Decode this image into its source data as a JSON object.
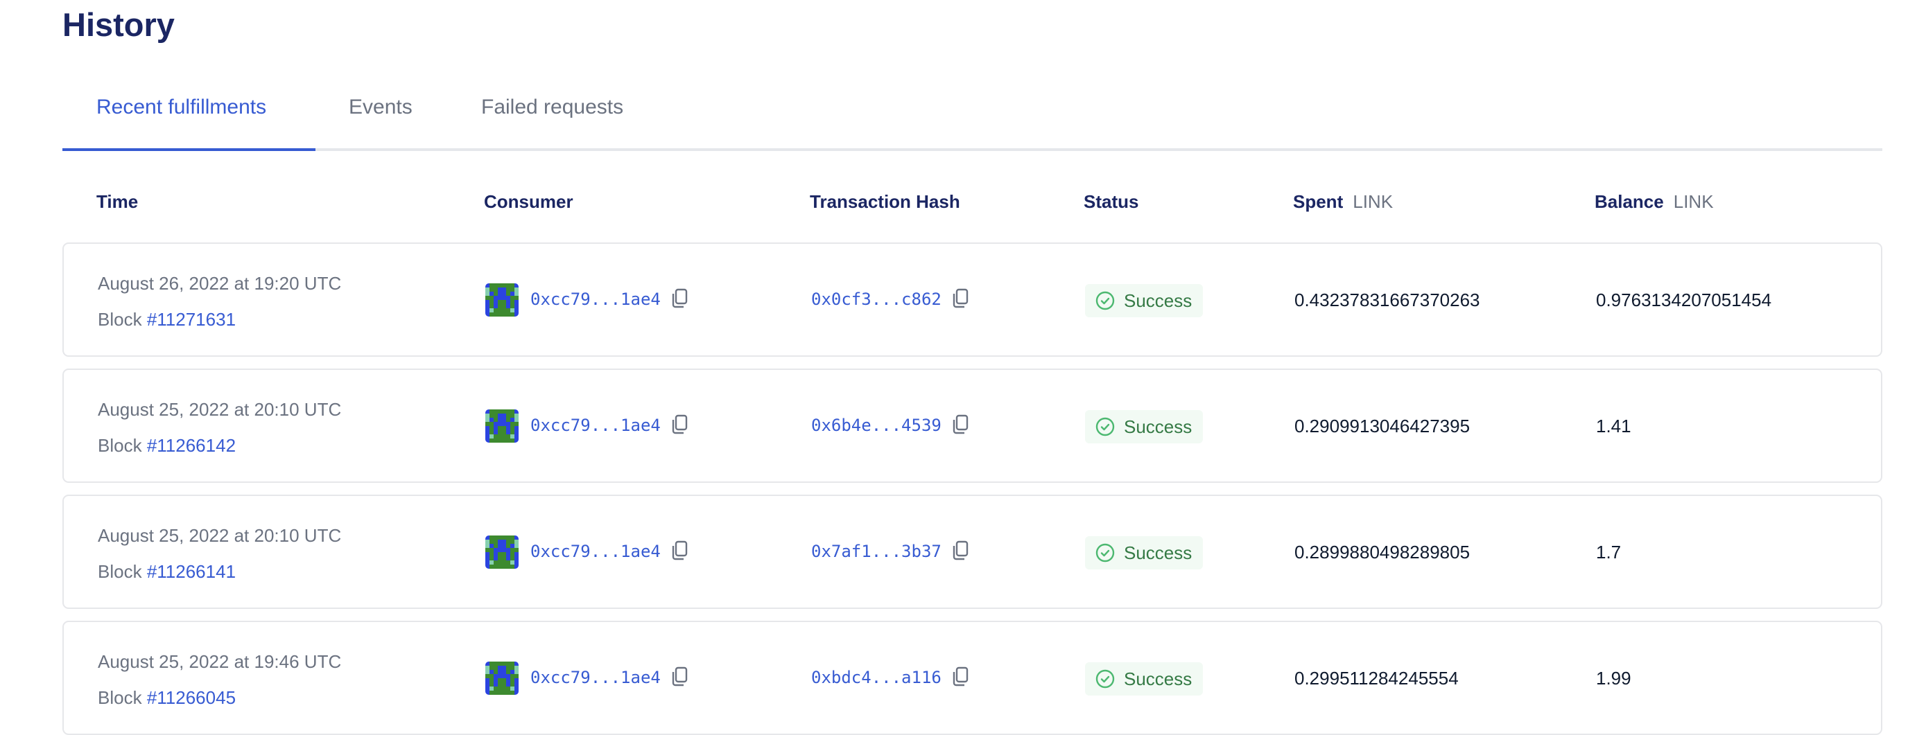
{
  "page": {
    "title": "History"
  },
  "tabs": [
    {
      "label": "Recent fulfillments",
      "active": true
    },
    {
      "label": "Events",
      "active": false
    },
    {
      "label": "Failed requests",
      "active": false
    }
  ],
  "columns": {
    "time": "Time",
    "consumer": "Consumer",
    "tx_hash": "Transaction Hash",
    "status": "Status",
    "spent": "Spent",
    "spent_unit": "LINK",
    "balance": "Balance",
    "balance_unit": "LINK"
  },
  "colors": {
    "accent": "#375bd2",
    "success": "#357a45",
    "heading": "#1b2663"
  },
  "rows": [
    {
      "time": "August 26, 2022 at 19:20 UTC",
      "block_label": "Block",
      "block": "#11271631",
      "consumer": "0xcc79...1ae4",
      "tx_hash": "0x0cf3...c862",
      "status": "Success",
      "spent": "0.43237831667370263",
      "balance": "0.9763134207051454"
    },
    {
      "time": "August 25, 2022 at 20:10 UTC",
      "block_label": "Block",
      "block": "#11266142",
      "consumer": "0xcc79...1ae4",
      "tx_hash": "0x6b4e...4539",
      "status": "Success",
      "spent": "0.2909913046427395",
      "balance": "1.41"
    },
    {
      "time": "August 25, 2022 at 20:10 UTC",
      "block_label": "Block",
      "block": "#11266141",
      "consumer": "0xcc79...1ae4",
      "tx_hash": "0x7af1...3b37",
      "status": "Success",
      "spent": "0.2899880498289805",
      "balance": "1.7"
    },
    {
      "time": "August 25, 2022 at 19:46 UTC",
      "block_label": "Block",
      "block": "#11266045",
      "consumer": "0xcc79...1ae4",
      "tx_hash": "0xbdc4...a116",
      "status": "Success",
      "spent": "0.299511284245554",
      "balance": "1.99"
    }
  ]
}
